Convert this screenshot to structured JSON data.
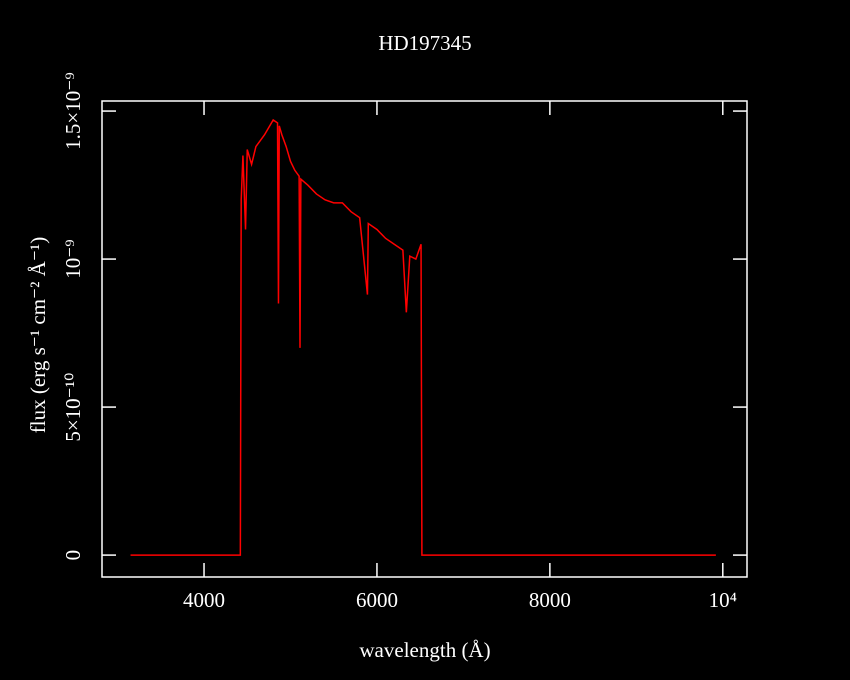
{
  "chart_data": {
    "type": "line",
    "title": "HD197345",
    "x_label": "wavelength (Å)",
    "y_label": "flux (erg s⁻¹ cm⁻² Å⁻¹)",
    "xlim": [
      2820,
      10280
    ],
    "xticks": [
      4000,
      6000,
      8000,
      {
        "value": 10000,
        "label": "10⁴"
      }
    ],
    "ylim": [
      -7.4e-11,
      1.534e-09
    ],
    "yticks": [
      {
        "value": 0,
        "label": "0"
      },
      {
        "value": 5e-10,
        "label": "5×10⁻¹⁰"
      },
      {
        "value": 1e-09,
        "label": "10⁻⁹"
      },
      {
        "value": 1.5e-09,
        "label": "1.5×10⁻⁹"
      }
    ],
    "x": [
      3150,
      4420,
      4430,
      4450,
      4480,
      4500,
      4550,
      4600,
      4650,
      4700,
      4760,
      4800,
      4850,
      4861,
      4870,
      4900,
      4950,
      5000,
      5050,
      5100,
      5110,
      5120,
      5200,
      5300,
      5400,
      5500,
      5600,
      5700,
      5800,
      5890,
      5900,
      6000,
      6100,
      6200,
      6300,
      6340,
      6380,
      6450,
      6510,
      6520,
      9920
    ],
    "series": [
      {
        "color": "#ff0000",
        "values": [
          0,
          0,
          1.2e-09,
          1.35e-09,
          1.1e-09,
          1.37e-09,
          1.32e-09,
          1.38e-09,
          1.4e-09,
          1.42e-09,
          1.45e-09,
          1.47e-09,
          1.46e-09,
          8.5e-10,
          1.45e-09,
          1.42e-09,
          1.38e-09,
          1.33e-09,
          1.3e-09,
          1.28e-09,
          7e-10,
          1.27e-09,
          1.25e-09,
          1.22e-09,
          1.2e-09,
          1.19e-09,
          1.19e-09,
          1.16e-09,
          1.14e-09,
          8.8e-10,
          1.12e-09,
          1.1e-09,
          1.07e-09,
          1.05e-09,
          1.03e-09,
          8.2e-10,
          1.01e-09,
          1e-09,
          1.05e-09,
          0,
          0
        ]
      }
    ]
  }
}
